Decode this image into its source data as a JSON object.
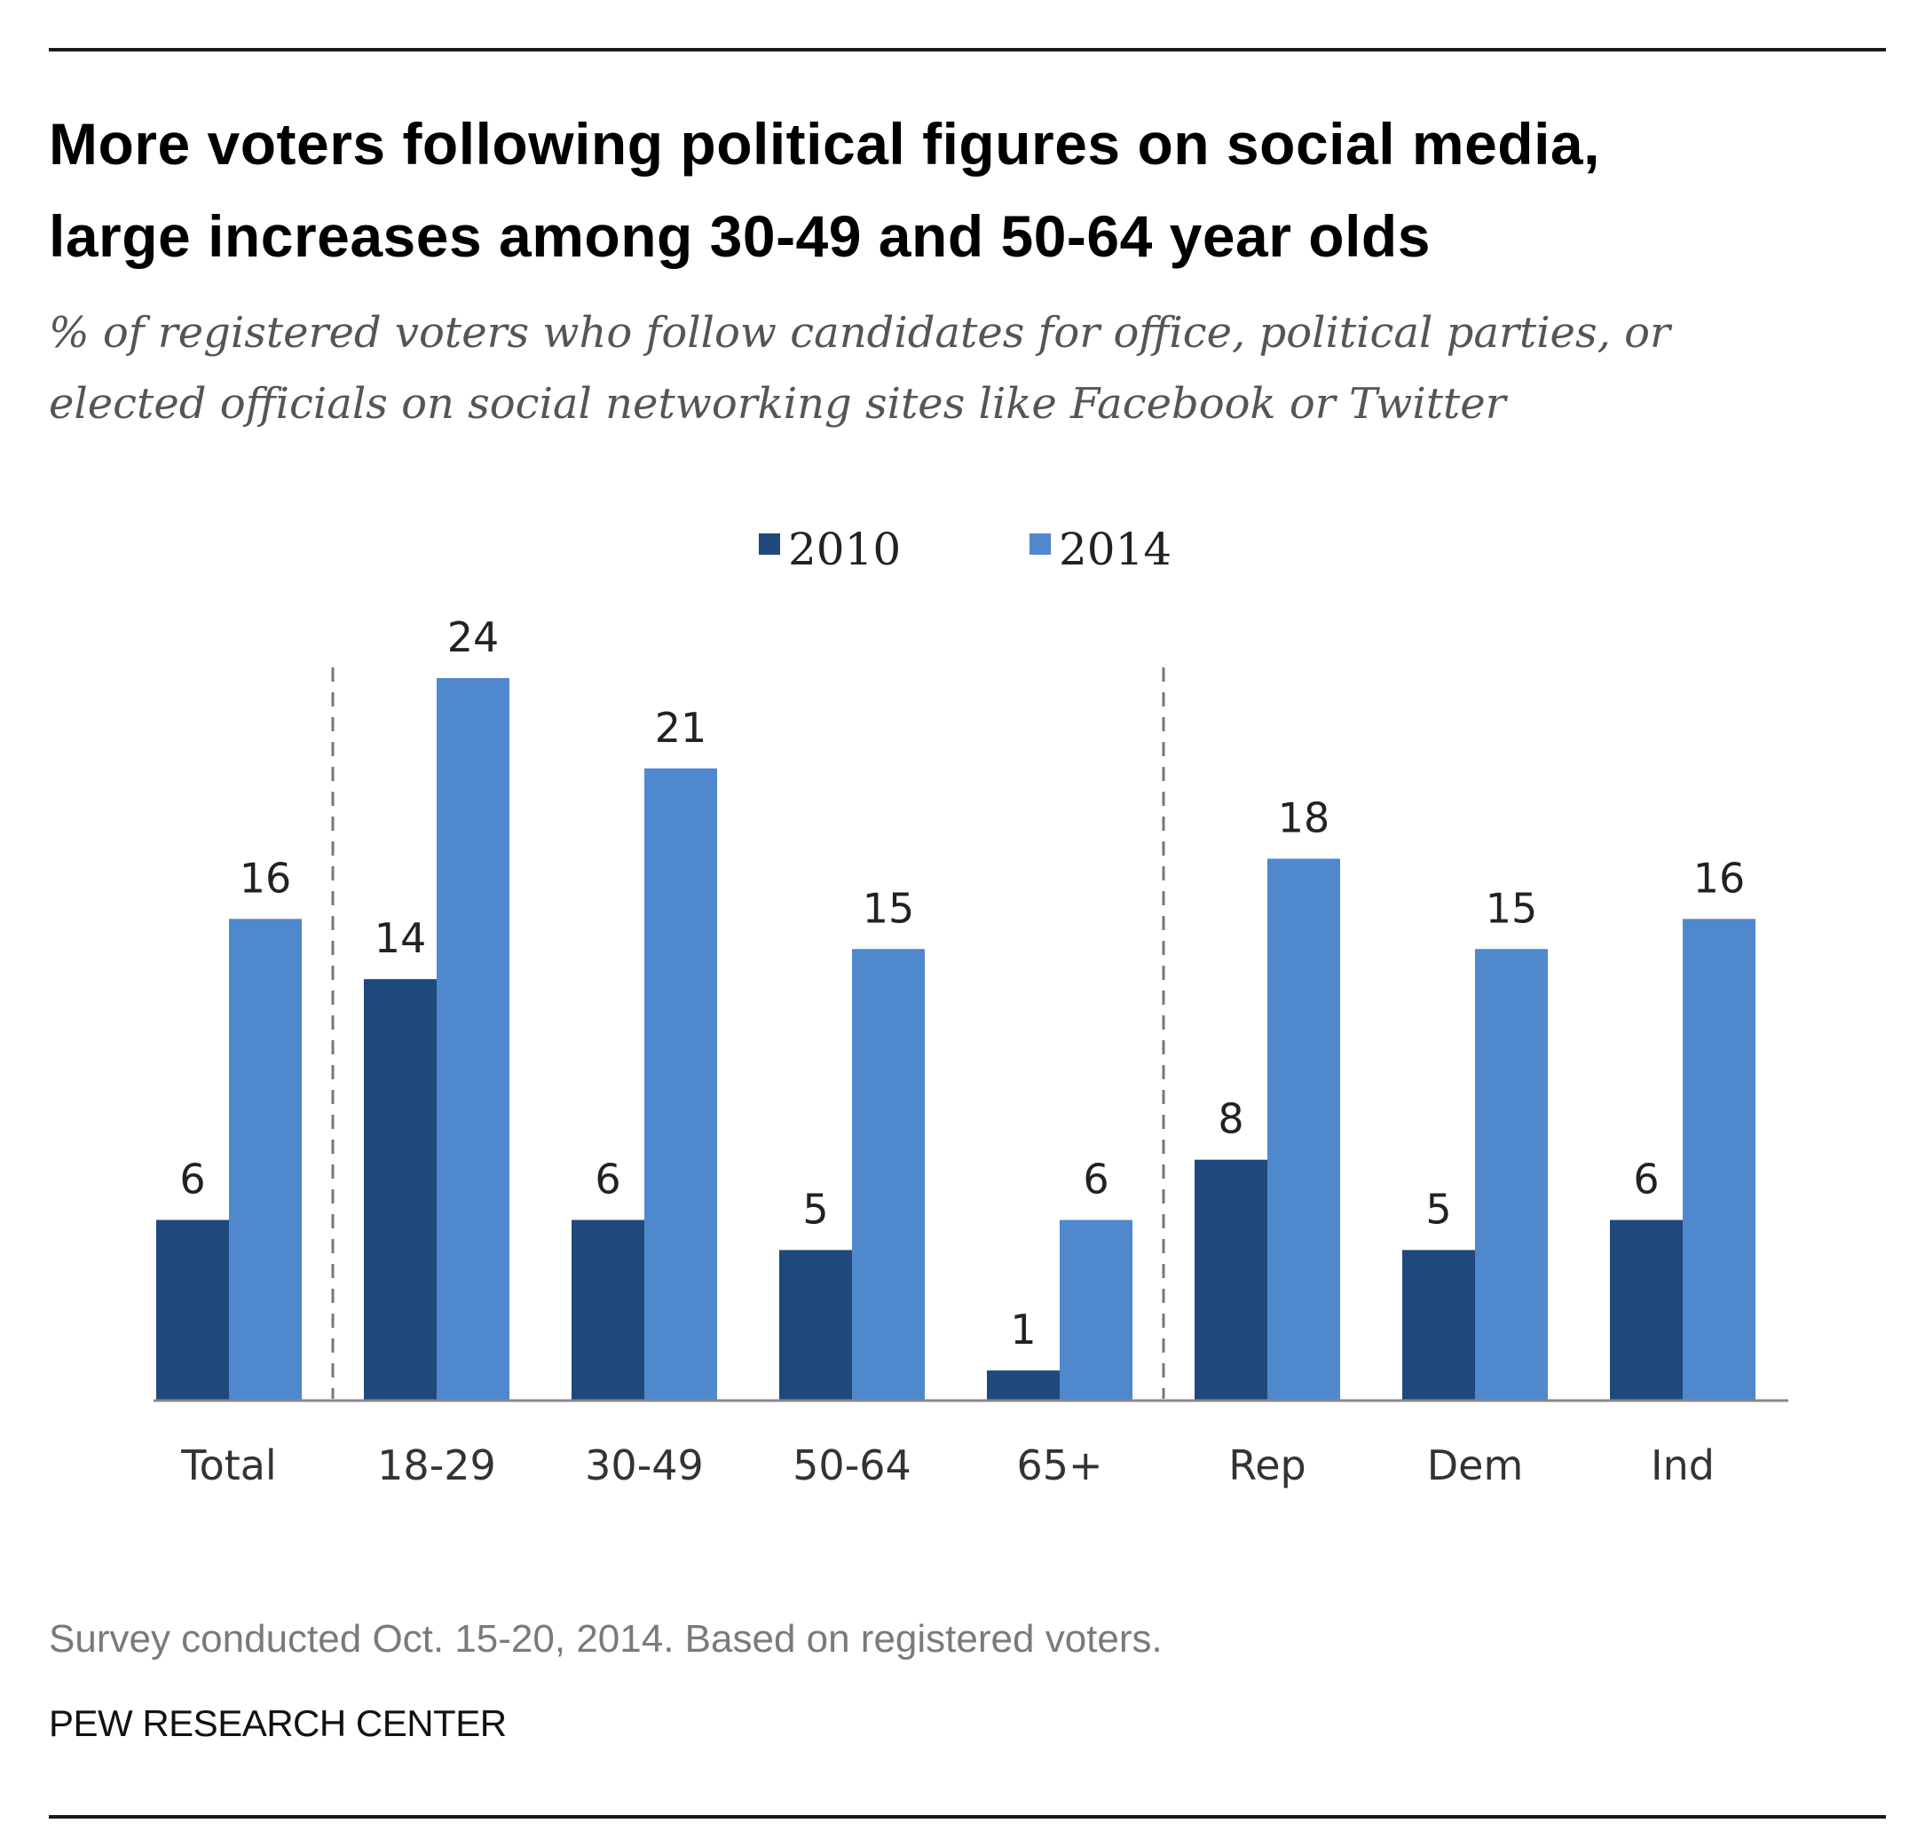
{
  "header": {
    "title_line1": "More voters following political figures on social media,",
    "title_line2": "large increases among 30-49 and 50-64 year olds",
    "subtitle_line1": "% of registered voters who follow candidates for office, political parties, or",
    "subtitle_line2": "elected officials on social networking sites like Facebook or Twitter"
  },
  "footer": {
    "note": "Survey conducted Oct. 15-20, 2014. Based on registered voters.",
    "source": "PEW RESEARCH CENTER"
  },
  "colors": {
    "series_2010": "#1f497d",
    "series_2014": "#4f88cc",
    "axis": "#888888",
    "divider": "#777777"
  },
  "chart_data": {
    "type": "bar",
    "title": "More voters following political figures on social media, large increases among 30-49 and 50-64 year olds",
    "subtitle": "% of registered voters who follow candidates for office, political parties, or elected officials on social networking sites like Facebook or Twitter",
    "xlabel": "",
    "ylabel": "",
    "ylim": [
      0,
      24
    ],
    "grid": false,
    "legend_position": "top-center",
    "categories": [
      "Total",
      "18-29",
      "30-49",
      "50-64",
      "65+",
      "Rep",
      "Dem",
      "Ind"
    ],
    "series": [
      {
        "name": "2010",
        "values": [
          6,
          14,
          6,
          5,
          1,
          8,
          5,
          6
        ]
      },
      {
        "name": "2014",
        "values": [
          16,
          24,
          21,
          15,
          6,
          18,
          15,
          16
        ]
      }
    ],
    "group_dividers_after": [
      "Total",
      "65+"
    ]
  }
}
